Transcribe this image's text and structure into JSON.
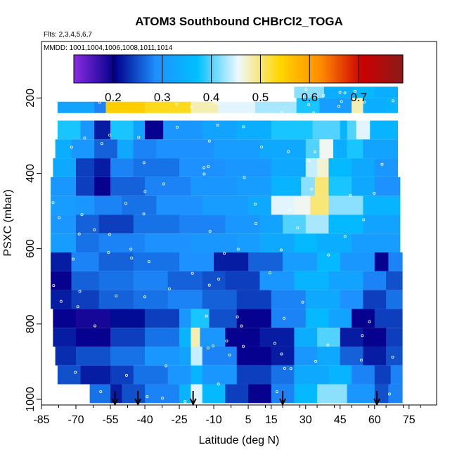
{
  "chart_data": {
    "type": "heatmap",
    "title": "ATOM3 Southbound CHBrCl2_TOGA",
    "annotations": {
      "flights": "Flts: 2,3,4,5,6,7",
      "dates": "MMDD: 1001,1004,1006,1008,1011,1014"
    },
    "xlabel": "Latitude (deg N)",
    "ylabel": "PSXC (mbar)",
    "xlim": [
      -85,
      87
    ],
    "ylim": [
      1015,
      50
    ],
    "y_reversed": true,
    "x_ticks": [
      -85,
      -70,
      -55,
      -40,
      -25,
      -10,
      5,
      15,
      30,
      45,
      60,
      75
    ],
    "y_ticks": [
      200,
      400,
      600,
      800,
      1000
    ],
    "colorbar": {
      "min": 0.12,
      "max": 0.79,
      "ticks": [
        0.2,
        0.3,
        0.4,
        0.5,
        0.6,
        0.7
      ],
      "colors": [
        "#8a2be2",
        "#00008b",
        "#1e90ff",
        "#00bfff",
        "#f0f8ff",
        "#ffd700",
        "#ff8c00",
        "#cd0000",
        "#8b1a1a"
      ]
    },
    "flight_markers_lat": [
      -53,
      -43,
      -19,
      20,
      61
    ],
    "bands": [
      {
        "p": [
          170,
          200
        ],
        "lon": [
          25,
          70
        ],
        "segs": [
          [
            25,
            0.42
          ],
          [
            38,
            0.34
          ],
          [
            50,
            0.36
          ],
          [
            60,
            0.34
          ]
        ]
      },
      {
        "p": [
          210,
          240
        ],
        "lon": [
          -78,
          26
        ],
        "segs": [
          [
            -78,
            0.32
          ],
          [
            -62,
            0.28
          ],
          [
            -57,
            0.55
          ],
          [
            -40,
            0.53
          ],
          [
            -20,
            0.48
          ],
          [
            -8,
            0.45
          ],
          [
            8,
            0.43
          ],
          [
            26,
            0.4
          ]
        ]
      },
      {
        "p": [
          200,
          240
        ],
        "lon": [
          26,
          70
        ],
        "segs": [
          [
            26,
            0.38
          ],
          [
            36,
            0.31
          ],
          [
            50,
            0.48
          ],
          [
            55,
            0.34
          ],
          [
            65,
            0.35
          ]
        ]
      },
      {
        "p": [
          260,
          310
        ],
        "lon": [
          -78,
          70
        ],
        "segs": [
          [
            -78,
            0.38
          ],
          [
            -68,
            0.3
          ],
          [
            -62,
            0.22
          ],
          [
            -55,
            0.38
          ],
          [
            -45,
            0.32
          ],
          [
            -40,
            0.2
          ],
          [
            -32,
            0.3
          ],
          [
            -15,
            0.32
          ],
          [
            0,
            0.34
          ],
          [
            15,
            0.38
          ],
          [
            33,
            0.4
          ],
          [
            45,
            0.35
          ],
          [
            48,
            0.4
          ],
          [
            52,
            0.45
          ],
          [
            58,
            0.35
          ]
        ]
      },
      {
        "p": [
          310,
          360
        ],
        "lon": [
          -79,
          70
        ],
        "segs": [
          [
            -79,
            0.34
          ],
          [
            -72,
            0.3
          ],
          [
            -62,
            0.26
          ],
          [
            -52,
            0.33
          ],
          [
            -45,
            0.28
          ],
          [
            -35,
            0.29
          ],
          [
            -10,
            0.31
          ],
          [
            10,
            0.33
          ],
          [
            30,
            0.4
          ],
          [
            36,
            0.46
          ],
          [
            42,
            0.34
          ],
          [
            48,
            0.38
          ],
          [
            55,
            0.32
          ]
        ]
      },
      {
        "p": [
          360,
          410
        ],
        "lon": [
          -80,
          70
        ],
        "segs": [
          [
            -80,
            0.33
          ],
          [
            -70,
            0.24
          ],
          [
            -62,
            0.22
          ],
          [
            -55,
            0.28
          ],
          [
            -45,
            0.27
          ],
          [
            -25,
            0.29
          ],
          [
            -5,
            0.3
          ],
          [
            15,
            0.33
          ],
          [
            30,
            0.44
          ],
          [
            35,
            0.47
          ],
          [
            40,
            0.36
          ],
          [
            50,
            0.33
          ],
          [
            60,
            0.3
          ]
        ]
      },
      {
        "p": [
          410,
          460
        ],
        "lon": [
          -81,
          71
        ],
        "segs": [
          [
            -81,
            0.3
          ],
          [
            -70,
            0.24
          ],
          [
            -62,
            0.2
          ],
          [
            -55,
            0.26
          ],
          [
            -40,
            0.28
          ],
          [
            -20,
            0.3
          ],
          [
            0,
            0.31
          ],
          [
            15,
            0.35
          ],
          [
            28,
            0.42
          ],
          [
            34,
            0.5
          ],
          [
            40,
            0.38
          ],
          [
            50,
            0.33
          ],
          [
            60,
            0.29
          ]
        ]
      },
      {
        "p": [
          460,
          510
        ],
        "lon": [
          -81,
          71
        ],
        "segs": [
          [
            -81,
            0.31
          ],
          [
            -70,
            0.3
          ],
          [
            -62,
            0.28
          ],
          [
            -50,
            0.27
          ],
          [
            -35,
            0.29
          ],
          [
            -15,
            0.31
          ],
          [
            5,
            0.33
          ],
          [
            15,
            0.45
          ],
          [
            25,
            0.46
          ],
          [
            32,
            0.5
          ],
          [
            40,
            0.42
          ],
          [
            55,
            0.35
          ]
        ]
      },
      {
        "p": [
          510,
          560
        ],
        "lon": [
          -81,
          71
        ],
        "segs": [
          [
            -81,
            0.3
          ],
          [
            -70,
            0.26
          ],
          [
            -60,
            0.24
          ],
          [
            -45,
            0.27
          ],
          [
            -25,
            0.28
          ],
          [
            -5,
            0.3
          ],
          [
            10,
            0.32
          ],
          [
            20,
            0.4
          ],
          [
            30,
            0.43
          ],
          [
            40,
            0.36
          ],
          [
            55,
            0.32
          ]
        ]
      },
      {
        "p": [
          560,
          610
        ],
        "lon": [
          -81,
          71
        ],
        "segs": [
          [
            -81,
            0.31
          ],
          [
            -70,
            0.27
          ],
          [
            -60,
            0.28
          ],
          [
            -40,
            0.29
          ],
          [
            -20,
            0.3
          ],
          [
            0,
            0.31
          ],
          [
            10,
            0.33
          ],
          [
            25,
            0.36
          ],
          [
            35,
            0.34
          ],
          [
            50,
            0.31
          ]
        ]
      },
      {
        "p": [
          610,
          660
        ],
        "lon": [
          -81,
          72
        ],
        "segs": [
          [
            -81,
            0.22
          ],
          [
            -72,
            0.28
          ],
          [
            -60,
            0.26
          ],
          [
            -45,
            0.27
          ],
          [
            -25,
            0.29
          ],
          [
            -10,
            0.22
          ],
          [
            5,
            0.26
          ],
          [
            20,
            0.31
          ],
          [
            35,
            0.36
          ],
          [
            45,
            0.3
          ],
          [
            60,
            0.2
          ],
          [
            66,
            0.28
          ]
        ]
      },
      {
        "p": [
          660,
          710
        ],
        "lon": [
          -81,
          72
        ],
        "segs": [
          [
            -81,
            0.2
          ],
          [
            -72,
            0.26
          ],
          [
            -60,
            0.27
          ],
          [
            -45,
            0.28
          ],
          [
            -30,
            0.26
          ],
          [
            -15,
            0.25
          ],
          [
            -5,
            0.24
          ],
          [
            10,
            0.3
          ],
          [
            25,
            0.35
          ],
          [
            40,
            0.32
          ],
          [
            55,
            0.28
          ],
          [
            65,
            0.25
          ]
        ]
      },
      {
        "p": [
          710,
          760
        ],
        "lon": [
          -81,
          72
        ],
        "segs": [
          [
            -81,
            0.22
          ],
          [
            -72,
            0.24
          ],
          [
            -60,
            0.26
          ],
          [
            -45,
            0.27
          ],
          [
            -30,
            0.28
          ],
          [
            -15,
            0.26
          ],
          [
            0,
            0.24
          ],
          [
            15,
            0.28
          ],
          [
            30,
            0.33
          ],
          [
            45,
            0.29
          ],
          [
            55,
            0.24
          ],
          [
            65,
            0.27
          ]
        ]
      },
      {
        "p": [
          760,
          810
        ],
        "lon": [
          -80,
          72
        ],
        "segs": [
          [
            -80,
            0.2
          ],
          [
            -70,
            0.19
          ],
          [
            -55,
            0.21
          ],
          [
            -40,
            0.24
          ],
          [
            -25,
            0.3
          ],
          [
            -20,
            0.38
          ],
          [
            -12,
            0.25
          ],
          [
            0,
            0.2
          ],
          [
            15,
            0.28
          ],
          [
            30,
            0.36
          ],
          [
            40,
            0.32
          ],
          [
            50,
            0.2
          ],
          [
            60,
            0.24
          ]
        ]
      },
      {
        "p": [
          810,
          860
        ],
        "lon": [
          -80,
          72
        ],
        "segs": [
          [
            -80,
            0.22
          ],
          [
            -70,
            0.2
          ],
          [
            -55,
            0.24
          ],
          [
            -40,
            0.27
          ],
          [
            -25,
            0.35
          ],
          [
            -20,
            0.48
          ],
          [
            -16,
            0.3
          ],
          [
            -5,
            0.2
          ],
          [
            10,
            0.22
          ],
          [
            25,
            0.34
          ],
          [
            35,
            0.4
          ],
          [
            45,
            0.22
          ],
          [
            55,
            0.2
          ],
          [
            65,
            0.24
          ]
        ]
      },
      {
        "p": [
          860,
          910
        ],
        "lon": [
          -79,
          72
        ],
        "segs": [
          [
            -79,
            0.23
          ],
          [
            -70,
            0.25
          ],
          [
            -55,
            0.27
          ],
          [
            -40,
            0.3
          ],
          [
            -25,
            0.32
          ],
          [
            -20,
            0.44
          ],
          [
            -15,
            0.28
          ],
          [
            0,
            0.2
          ],
          [
            15,
            0.22
          ],
          [
            25,
            0.3
          ],
          [
            35,
            0.33
          ],
          [
            45,
            0.26
          ],
          [
            55,
            0.22
          ],
          [
            65,
            0.25
          ]
        ]
      },
      {
        "p": [
          910,
          960
        ],
        "lon": [
          -78,
          72
        ],
        "segs": [
          [
            -78,
            0.25
          ],
          [
            -68,
            0.22
          ],
          [
            -55,
            0.24
          ],
          [
            -45,
            0.27
          ],
          [
            -30,
            0.3
          ],
          [
            -20,
            0.35
          ],
          [
            -15,
            0.3
          ],
          [
            0,
            0.24
          ],
          [
            15,
            0.27
          ],
          [
            25,
            0.33
          ],
          [
            40,
            0.35
          ],
          [
            50,
            0.28
          ],
          [
            60,
            0.24
          ],
          [
            67,
            0.28
          ]
        ]
      },
      {
        "p": [
          960,
          1010
        ],
        "lon": [
          -64,
          72
        ],
        "segs": [
          [
            -64,
            0.27
          ],
          [
            -55,
            0.22
          ],
          [
            -50,
            0.25
          ],
          [
            -40,
            0.28
          ],
          [
            -25,
            0.35
          ],
          [
            -20,
            0.45
          ],
          [
            -15,
            0.36
          ],
          [
            -5,
            0.24
          ],
          [
            5,
            0.2
          ],
          [
            15,
            0.28
          ],
          [
            25,
            0.36
          ],
          [
            35,
            0.42
          ],
          [
            48,
            0.3
          ],
          [
            60,
            0.25
          ],
          [
            66,
            0.28
          ]
        ]
      }
    ]
  }
}
